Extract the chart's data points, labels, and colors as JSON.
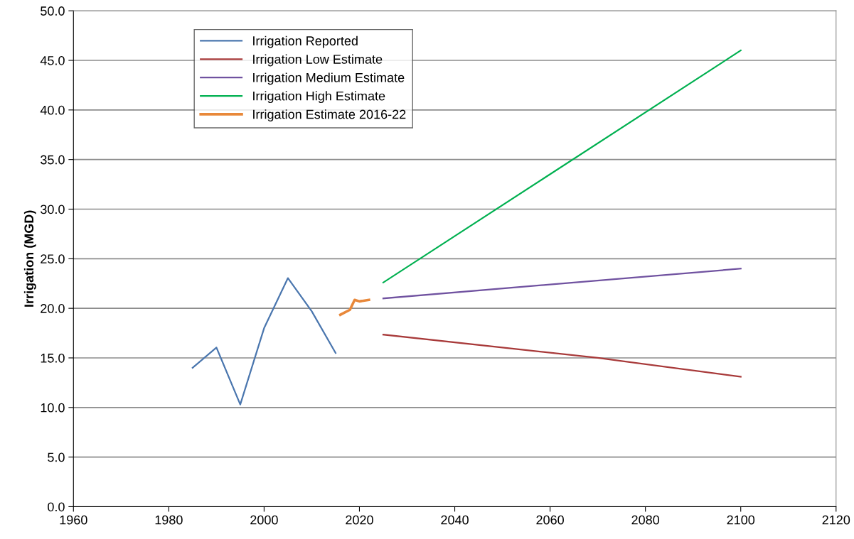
{
  "chart_data": {
    "type": "line",
    "ylabel": "Irrigation (MGD)",
    "xlim": [
      1960,
      2120
    ],
    "xticks": [
      1960,
      1980,
      2000,
      2020,
      2040,
      2060,
      2080,
      2100,
      2120
    ],
    "ylim": [
      0,
      50
    ],
    "yticks": [
      {
        "value": 0,
        "label": "0.0"
      },
      {
        "value": 5,
        "label": "5.0"
      },
      {
        "value": 10,
        "label": "10.0"
      },
      {
        "value": 15,
        "label": "15.0"
      },
      {
        "value": 20,
        "label": "20.0"
      },
      {
        "value": 25,
        "label": "25.0"
      },
      {
        "value": 30,
        "label": "30.0"
      },
      {
        "value": 35,
        "label": "35.0"
      },
      {
        "value": 40,
        "label": "40.0"
      },
      {
        "value": 45,
        "label": "45.0"
      },
      {
        "value": 50,
        "label": "50.0"
      }
    ],
    "grid": "y",
    "legend": "top left",
    "marker": "none",
    "line_style": "solid",
    "series": [
      {
        "name": "Irrigation Reported",
        "color": "#4a76ae",
        "x": [
          1985,
          1990,
          1995,
          2000,
          2005,
          2010,
          2015
        ],
        "values": [
          14.0,
          16.05,
          10.3,
          18.0,
          23.05,
          19.7,
          15.5
        ]
      },
      {
        "name": "Irrigation Low Estimate",
        "color": "#a83a3a",
        "x": [
          2025,
          2070,
          2100
        ],
        "values": [
          17.35,
          15.0,
          13.1
        ]
      },
      {
        "name": "Irrigation Medium Estimate",
        "color": "#7052a0",
        "x": [
          2025,
          2060,
          2100
        ],
        "values": [
          21.0,
          22.4,
          24.0
        ]
      },
      {
        "name": "Irrigation High Estimate",
        "color": "#00b050",
        "x": [
          2025,
          2100
        ],
        "values": [
          22.6,
          46.0
        ]
      },
      {
        "name": "Irrigation Estimate 2016-22",
        "color": "#e8883a",
        "x": [
          2016,
          2018,
          2019,
          2020,
          2022
        ],
        "values": [
          19.35,
          19.85,
          20.85,
          20.7,
          20.85
        ]
      }
    ]
  }
}
